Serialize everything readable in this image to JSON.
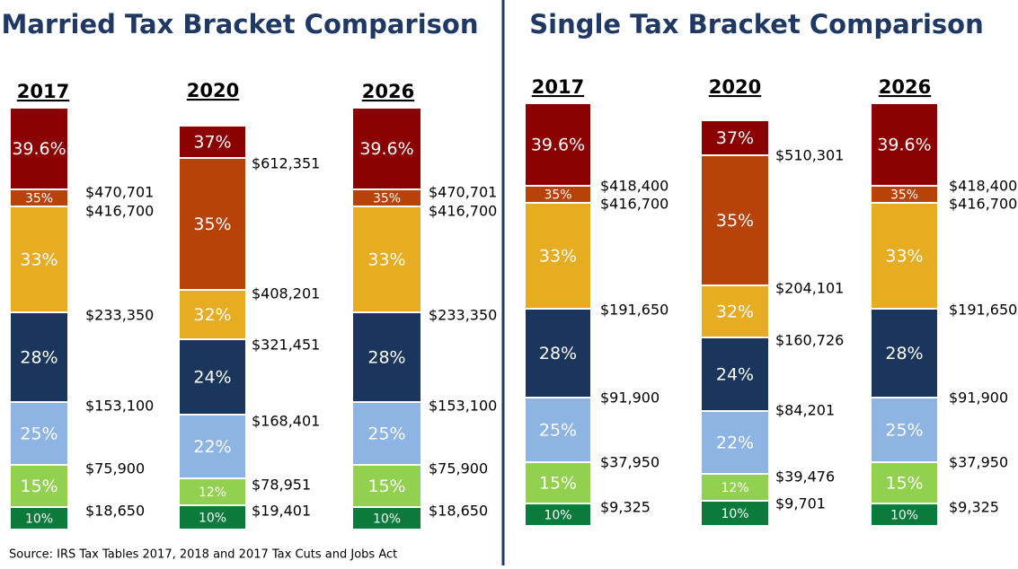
{
  "panels": [
    {
      "title": "Married Tax Bracket Comparison",
      "columns": [
        {
          "year": "2017",
          "rates": [
            "39.6%",
            "35%",
            "33%",
            "28%",
            "25%",
            "15%",
            "10%"
          ],
          "thresholds": [
            "$470,701",
            "$416,700",
            "$233,350",
            "$153,100",
            "$75,900",
            "$18,650"
          ]
        },
        {
          "year": "2020",
          "rates": [
            "37%",
            "35%",
            "32%",
            "24%",
            "22%",
            "12%",
            "10%"
          ],
          "thresholds": [
            "$612,351",
            "$408,201",
            "$321,451",
            "$168,401",
            "$78,951",
            "$19,401"
          ]
        },
        {
          "year": "2026",
          "rates": [
            "39.6%",
            "35%",
            "33%",
            "28%",
            "25%",
            "15%",
            "10%"
          ],
          "thresholds": [
            "$470,701",
            "$416,700",
            "$233,350",
            "$153,100",
            "$75,900",
            "$18,650"
          ]
        }
      ]
    },
    {
      "title": "Single Tax Bracket Comparison",
      "columns": [
        {
          "year": "2017",
          "rates": [
            "39.6%",
            "35%",
            "33%",
            "28%",
            "25%",
            "15%",
            "10%"
          ],
          "thresholds": [
            "$418,400",
            "$416,700",
            "$191,650",
            "$91,900",
            "$37,950",
            "$9,325"
          ]
        },
        {
          "year": "2020",
          "rates": [
            "37%",
            "35%",
            "32%",
            "24%",
            "22%",
            "12%",
            "10%"
          ],
          "thresholds": [
            "$510,301",
            "$204,101",
            "$160,726",
            "$84,201",
            "$39,476",
            "$9,701"
          ]
        },
        {
          "year": "2026",
          "rates": [
            "39.6%",
            "35%",
            "33%",
            "28%",
            "25%",
            "15%",
            "10%"
          ],
          "thresholds": [
            "$418,400",
            "$416,700",
            "$191,650",
            "$91,900",
            "$37,950",
            "$9,325"
          ]
        }
      ]
    }
  ],
  "source": "Source:  IRS Tax Tables 2017, 2018 and 2017 Tax Cuts and Jobs Act"
}
